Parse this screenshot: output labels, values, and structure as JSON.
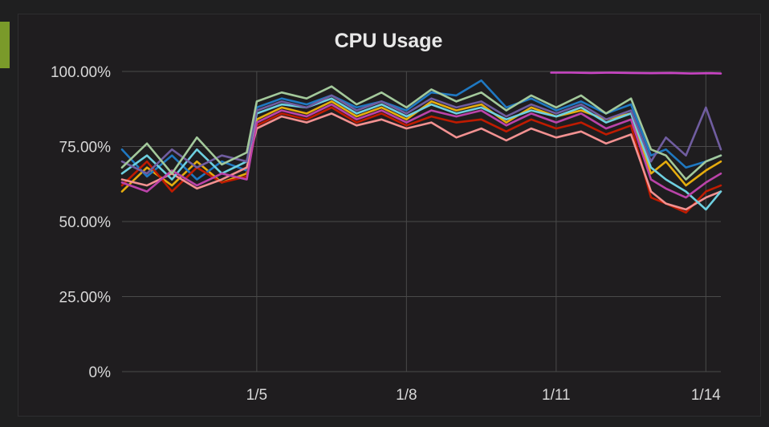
{
  "chart_data": {
    "type": "line",
    "title": "CPU Usage",
    "xlabel": "",
    "ylabel": "",
    "y_unit": "%",
    "ylim": [
      0,
      100
    ],
    "xlim": [
      2.3,
      14.3
    ],
    "y_ticks": [
      {
        "value": 0,
        "label": "0%"
      },
      {
        "value": 25,
        "label": "25.00%"
      },
      {
        "value": 50,
        "label": "50.00%"
      },
      {
        "value": 75,
        "label": "75.00%"
      },
      {
        "value": 100,
        "label": "100.00%"
      }
    ],
    "x_ticks": [
      {
        "value": 5,
        "label": "1/5"
      },
      {
        "value": 8,
        "label": "1/8"
      },
      {
        "value": 11,
        "label": "1/11"
      },
      {
        "value": 14,
        "label": "1/14"
      }
    ],
    "grid": true,
    "legend": "none",
    "series": [
      {
        "color": "#e5ac0e",
        "x": [
          2.3,
          2.8,
          3.3,
          3.8,
          4.3,
          4.8,
          5.0,
          5.5,
          6.0,
          6.5,
          7.0,
          7.5,
          8.0,
          8.5,
          9.0,
          9.5,
          10.0,
          10.5,
          11.0,
          11.5,
          12.0,
          12.5,
          12.9,
          13.2,
          13.6,
          14.0,
          14.3
        ],
        "y": [
          60,
          68,
          62,
          70,
          63,
          66,
          84,
          88,
          86,
          90,
          85,
          88,
          84,
          90,
          87,
          89,
          83,
          88,
          85,
          87,
          84,
          86,
          66,
          70,
          62,
          67,
          70
        ]
      },
      {
        "color": "#1f78c1",
        "x": [
          2.3,
          2.8,
          3.3,
          3.8,
          4.3,
          4.8,
          5.0,
          5.5,
          6.0,
          6.5,
          7.0,
          7.5,
          8.0,
          8.5,
          9.0,
          9.5,
          10.0,
          10.5,
          11.0,
          11.5,
          12.0,
          12.5,
          12.9,
          13.2,
          13.6,
          14.0,
          14.3
        ],
        "y": [
          74,
          65,
          72,
          64,
          70,
          67,
          88,
          91,
          89,
          92,
          88,
          90,
          87,
          93,
          92,
          97,
          88,
          91,
          87,
          90,
          86,
          89,
          72,
          74,
          68,
          70,
          72
        ]
      },
      {
        "color": "#bf1b00",
        "x": [
          2.3,
          2.8,
          3.3,
          3.8,
          4.3,
          4.8,
          5.0,
          5.5,
          6.0,
          6.5,
          7.0,
          7.5,
          8.0,
          8.5,
          9.0,
          9.5,
          10.0,
          10.5,
          11.0,
          11.5,
          12.0,
          12.5,
          12.9,
          13.2,
          13.6,
          14.0,
          14.3
        ],
        "y": [
          62,
          70,
          60,
          68,
          63,
          65,
          82,
          86,
          84,
          88,
          83,
          86,
          82,
          85,
          83,
          84,
          80,
          84,
          81,
          83,
          79,
          82,
          58,
          56,
          53,
          60,
          62
        ]
      },
      {
        "color": "#f29191",
        "x": [
          2.3,
          2.8,
          3.3,
          3.8,
          4.3,
          4.8,
          5.0,
          5.5,
          6.0,
          6.5,
          7.0,
          7.5,
          8.0,
          8.5,
          9.0,
          9.5,
          10.0,
          10.5,
          11.0,
          11.5,
          12.0,
          12.5,
          12.9,
          13.2,
          13.6,
          14.0,
          14.3
        ],
        "y": [
          64,
          62,
          66,
          61,
          64,
          68,
          81,
          85,
          83,
          86,
          82,
          84,
          81,
          83,
          78,
          81,
          77,
          81,
          78,
          80,
          76,
          79,
          60,
          56,
          54,
          58,
          60
        ]
      },
      {
        "color": "#6ed0e0",
        "x": [
          2.3,
          2.8,
          3.3,
          3.8,
          4.3,
          4.8,
          5.0,
          5.5,
          6.0,
          6.5,
          7.0,
          7.5,
          8.0,
          8.5,
          9.0,
          9.5,
          10.0,
          10.5,
          11.0,
          11.5,
          12.0,
          12.5,
          12.9,
          13.2,
          13.6,
          14.0,
          14.3
        ],
        "y": [
          66,
          72,
          64,
          74,
          66,
          70,
          86,
          89,
          88,
          91,
          86,
          89,
          85,
          89,
          86,
          88,
          84,
          87,
          85,
          88,
          83,
          86,
          68,
          64,
          60,
          54,
          60
        ]
      },
      {
        "color": "#ba43a9",
        "x": [
          2.3,
          2.8,
          3.3,
          3.8,
          4.3,
          4.8,
          5.0,
          5.5,
          6.0,
          6.5,
          7.0,
          7.5,
          8.0,
          8.5,
          9.0,
          9.5,
          10.0,
          10.5,
          11.0,
          11.5,
          12.0,
          12.5,
          12.9,
          13.2,
          13.6,
          14.0,
          14.3
        ],
        "y": [
          63,
          60,
          67,
          62,
          66,
          64,
          83,
          87,
          85,
          89,
          84,
          87,
          83,
          87,
          85,
          87,
          82,
          86,
          83,
          86,
          81,
          84,
          64,
          61,
          58,
          63,
          66
        ]
      },
      {
        "color": "#705da0",
        "x": [
          2.3,
          2.8,
          3.3,
          3.8,
          4.3,
          4.8,
          5.0,
          5.5,
          6.0,
          6.5,
          7.0,
          7.5,
          8.0,
          8.5,
          9.0,
          9.5,
          10.0,
          10.5,
          11.0,
          11.5,
          12.0,
          12.5,
          12.9,
          13.2,
          13.6,
          14.0,
          14.3
        ],
        "y": [
          70,
          66,
          74,
          68,
          72,
          70,
          87,
          90,
          88,
          92,
          87,
          90,
          86,
          91,
          88,
          90,
          85,
          89,
          86,
          89,
          84,
          87,
          70,
          78,
          72,
          88,
          74
        ]
      },
      {
        "color": "#a3c99b",
        "x": [
          2.3,
          2.8,
          3.3,
          3.8,
          4.3,
          4.8,
          5.0,
          5.5,
          6.0,
          6.5,
          7.0,
          7.5,
          8.0,
          8.5,
          9.0,
          9.5,
          10.0,
          10.5,
          11.0,
          11.5,
          12.0,
          12.5,
          12.9,
          13.2,
          13.6,
          14.0,
          14.3
        ],
        "y": [
          68,
          76,
          66,
          78,
          69,
          73,
          90,
          93,
          91,
          95,
          89,
          93,
          88,
          94,
          90,
          93,
          87,
          92,
          88,
          92,
          86,
          91,
          74,
          72,
          64,
          70,
          72
        ]
      },
      {
        "color": "#c944c4",
        "x": [
          10.9,
          11.3,
          11.7,
          12.1,
          12.5,
          12.9,
          13.3,
          13.7,
          14.1,
          14.3
        ],
        "y": [
          99.6,
          99.6,
          99.5,
          99.6,
          99.5,
          99.4,
          99.5,
          99.3,
          99.4,
          99.3
        ]
      }
    ]
  }
}
